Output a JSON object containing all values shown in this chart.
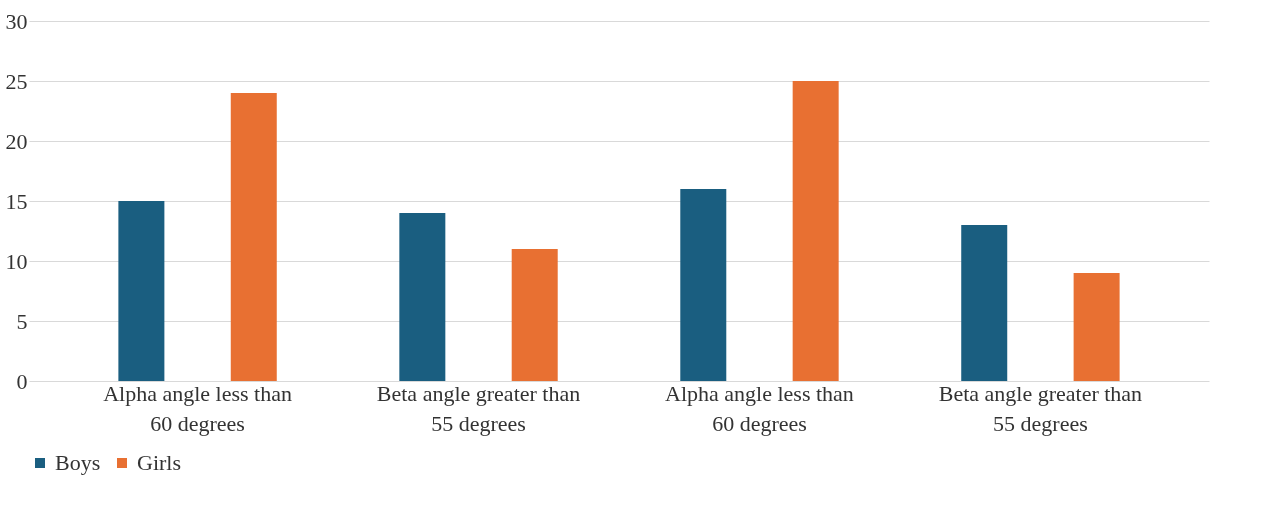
{
  "chart_data": {
    "type": "bar",
    "categories": [
      "Alpha angle less than 60 degrees",
      "Beta angle greater than 55 degrees",
      "Alpha angle less than 60 degrees",
      "Beta angle greater than 55 degrees"
    ],
    "series": [
      {
        "name": "Boys",
        "color": "#1a5e80",
        "values": [
          15,
          14,
          16,
          13
        ]
      },
      {
        "name": "Girls",
        "color": "#e87032",
        "values": [
          24,
          11,
          25,
          9
        ]
      }
    ],
    "ylim": [
      0,
      30
    ],
    "yticks": [
      0,
      5,
      10,
      15,
      20,
      25,
      30
    ],
    "grid": "y",
    "legend": "bottom left"
  }
}
